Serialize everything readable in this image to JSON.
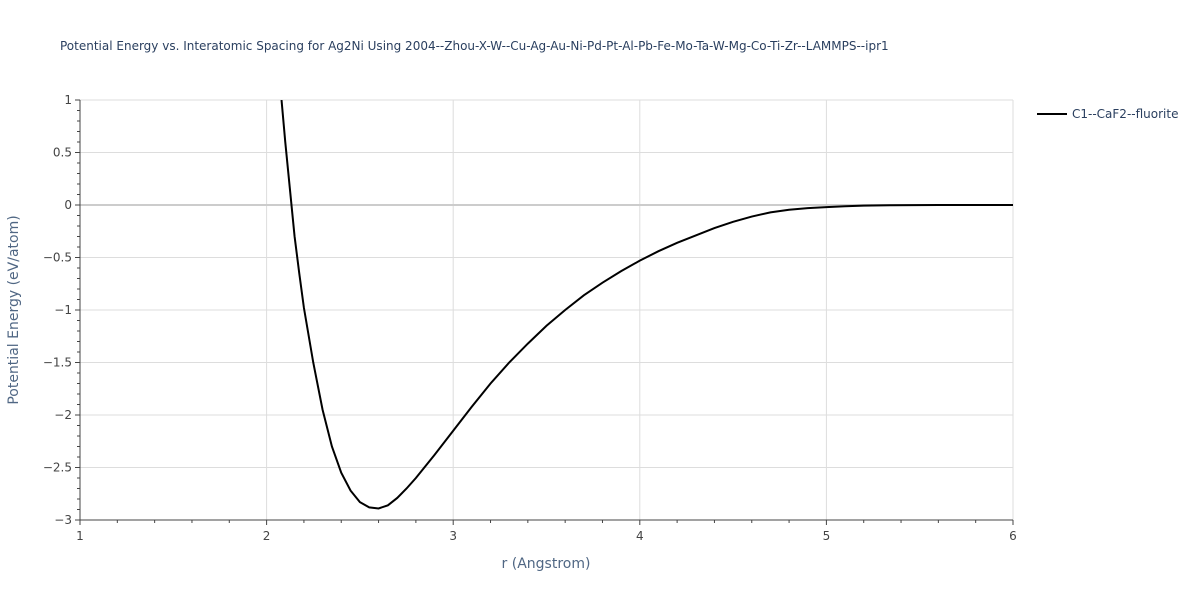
{
  "chart_data": {
    "type": "line",
    "title": "Potential Energy vs. Interatomic Spacing for Ag2Ni Using 2004--Zhou-X-W--Cu-Ag-Au-Ni-Pd-Pt-Al-Pb-Fe-Mo-Ta-W-Mg-Co-Ti-Zr--LAMMPS--ipr1",
    "xlabel": "r (Angstrom)",
    "ylabel": "Potential Energy (eV/atom)",
    "xlim": [
      1,
      6
    ],
    "ylim": [
      -3,
      1
    ],
    "x_ticks": [
      1,
      2,
      3,
      4,
      5,
      6
    ],
    "y_ticks": [
      1,
      0.5,
      0,
      -0.5,
      -1,
      -1.5,
      -2,
      -2.5,
      -3
    ],
    "x_tick_labels": [
      "1",
      "2",
      "3",
      "4",
      "5",
      "6"
    ],
    "y_tick_labels": [
      "1",
      "0.5",
      "0",
      "−0.5",
      "−1",
      "−1.5",
      "−2",
      "−2.5",
      "−3"
    ],
    "grid": true,
    "legend_position": "top-right",
    "series": [
      {
        "name": "C1--CaF2--fluorite",
        "color": "#000000",
        "x": [
          2.08,
          2.1,
          2.125,
          2.15,
          2.175,
          2.2,
          2.25,
          2.3,
          2.35,
          2.4,
          2.45,
          2.5,
          2.55,
          2.6,
          2.65,
          2.7,
          2.75,
          2.8,
          2.9,
          3.0,
          3.1,
          3.2,
          3.3,
          3.4,
          3.5,
          3.6,
          3.7,
          3.8,
          3.9,
          4.0,
          4.1,
          4.2,
          4.3,
          4.4,
          4.5,
          4.6,
          4.7,
          4.8,
          4.9,
          5.0,
          5.1,
          5.2,
          5.35,
          5.6,
          6.0
        ],
        "y": [
          1.0,
          0.6,
          0.15,
          -0.3,
          -0.65,
          -0.98,
          -1.5,
          -1.95,
          -2.3,
          -2.55,
          -2.72,
          -2.83,
          -2.88,
          -2.89,
          -2.86,
          -2.79,
          -2.7,
          -2.6,
          -2.38,
          -2.15,
          -1.92,
          -1.7,
          -1.5,
          -1.32,
          -1.15,
          -1.0,
          -0.86,
          -0.74,
          -0.63,
          -0.53,
          -0.44,
          -0.36,
          -0.29,
          -0.22,
          -0.16,
          -0.11,
          -0.07,
          -0.045,
          -0.03,
          -0.02,
          -0.012,
          -0.006,
          -0.002,
          0.0,
          0.0
        ]
      }
    ]
  }
}
